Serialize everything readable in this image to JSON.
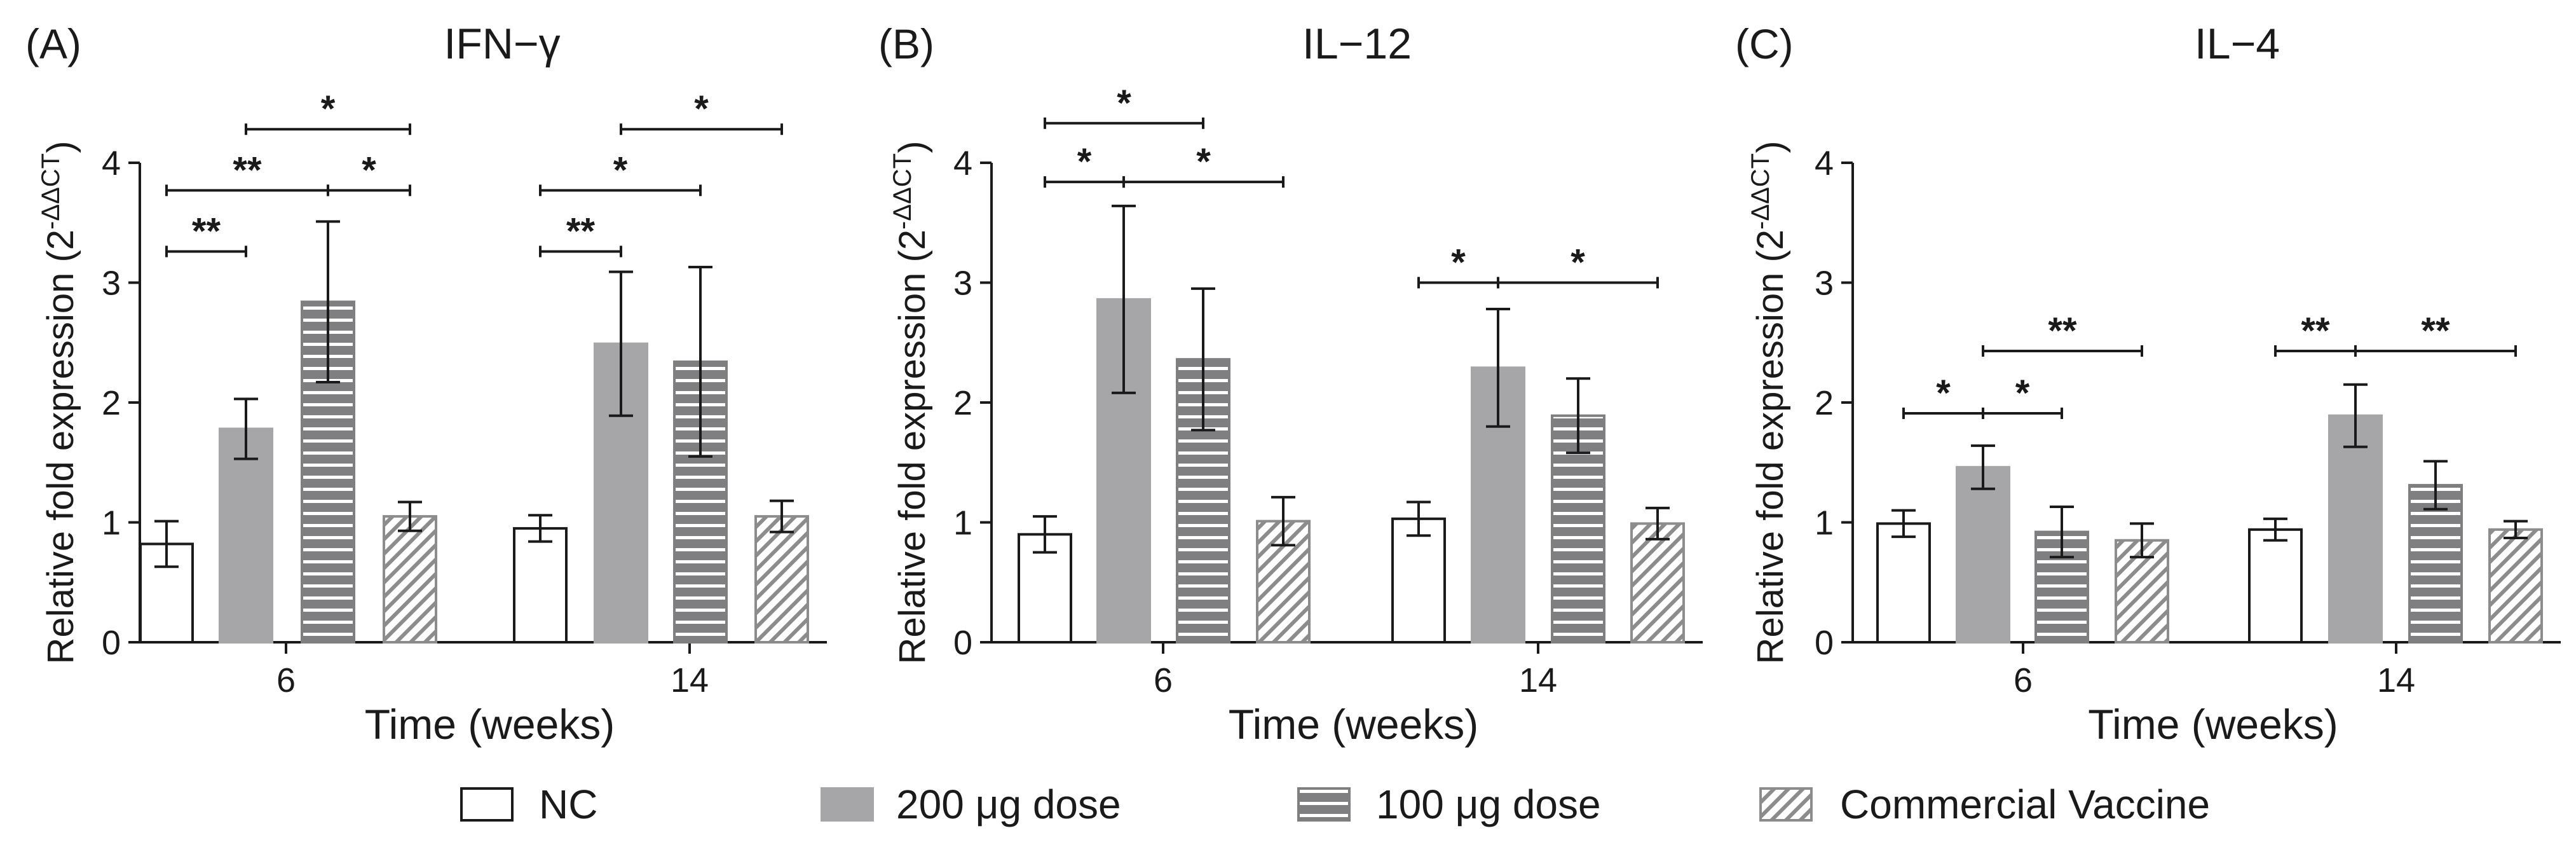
{
  "figure": {
    "legend": [
      {
        "key": "nc",
        "label": "NC"
      },
      {
        "key": "d200",
        "label": "200 μg dose"
      },
      {
        "key": "d100",
        "label": "100 μg dose"
      },
      {
        "key": "cv",
        "label": "Commercial Vaccine"
      }
    ],
    "colors": {
      "axis": "#1a1a1a",
      "nc_fill": "#ffffff",
      "d200_fill": "#a6a6a8",
      "d100_fill": "#7f7f81",
      "d100_stripe": "#ffffff",
      "cv_fill": "#ffffff",
      "cv_hatch": "#8c8c8c"
    }
  },
  "chart_data": [
    {
      "panel": "(A)",
      "type": "bar",
      "title": "IFN−γ",
      "xlabel": "Time (weeks)",
      "ylabel_main": "Relative fold expression (2",
      "ylabel_sup": "-ΔΔCT",
      "ylabel_close": ")",
      "ylim": [
        0,
        4
      ],
      "yticks": [
        0,
        1,
        2,
        3,
        4
      ],
      "categories": [
        "6",
        "14"
      ],
      "series": [
        {
          "name": "NC",
          "key": "nc",
          "values": [
            0.82,
            0.95
          ],
          "err": [
            0.19,
            0.11
          ]
        },
        {
          "name": "200 μg dose",
          "key": "d200",
          "values": [
            1.78,
            2.49
          ],
          "err": [
            0.25,
            0.6
          ]
        },
        {
          "name": "100 μg dose",
          "key": "d100",
          "values": [
            2.84,
            2.34
          ],
          "err": [
            0.67,
            0.79
          ]
        },
        {
          "name": "Commercial Vaccine",
          "key": "cv",
          "values": [
            1.05,
            1.05
          ],
          "err": [
            0.12,
            0.13
          ]
        }
      ],
      "significance": [
        {
          "group": 0,
          "from": 0,
          "to": 1,
          "y": 3.26,
          "label": "**"
        },
        {
          "group": 0,
          "from": 0,
          "to": 2,
          "y": 3.77,
          "label": "**"
        },
        {
          "group": 0,
          "from": 2,
          "to": 3,
          "y": 3.77,
          "label": "*"
        },
        {
          "group": 0,
          "from": 1,
          "to": 3,
          "y": 4.28,
          "label": "*"
        },
        {
          "group": 1,
          "from": 0,
          "to": 1,
          "y": 3.26,
          "label": "**"
        },
        {
          "group": 1,
          "from": 0,
          "to": 2,
          "y": 3.77,
          "label": "*"
        },
        {
          "group": 1,
          "from": 1,
          "to": 3,
          "y": 4.28,
          "label": "*"
        }
      ]
    },
    {
      "panel": "(B)",
      "type": "bar",
      "title": "IL−12",
      "xlabel": "Time (weeks)",
      "ylabel_main": "Relative fold expression (2",
      "ylabel_sup": "-ΔΔCT",
      "ylabel_close": ")",
      "ylim": [
        0,
        4
      ],
      "yticks": [
        0,
        1,
        2,
        3,
        4
      ],
      "categories": [
        "6",
        "14"
      ],
      "series": [
        {
          "name": "NC",
          "key": "nc",
          "values": [
            0.9,
            1.03
          ],
          "err": [
            0.15,
            0.14
          ]
        },
        {
          "name": "200 μg dose",
          "key": "d200",
          "values": [
            2.86,
            2.29
          ],
          "err": [
            0.78,
            0.49
          ]
        },
        {
          "name": "100 μg dose",
          "key": "d100",
          "values": [
            2.36,
            1.89
          ],
          "err": [
            0.59,
            0.31
          ]
        },
        {
          "name": "Commercial Vaccine",
          "key": "cv",
          "values": [
            1.01,
            0.99
          ],
          "err": [
            0.2,
            0.13
          ]
        }
      ],
      "significance": [
        {
          "group": 0,
          "from": 0,
          "to": 1,
          "y": 3.84,
          "label": "*"
        },
        {
          "group": 0,
          "from": 1,
          "to": 3,
          "y": 3.84,
          "label": "*"
        },
        {
          "group": 0,
          "from": 0,
          "to": 2,
          "y": 4.33,
          "label": "*"
        },
        {
          "group": 1,
          "from": 0,
          "to": 1,
          "y": 3.0,
          "label": "*"
        },
        {
          "group": 1,
          "from": 1,
          "to": 3,
          "y": 3.0,
          "label": "*"
        }
      ]
    },
    {
      "panel": "(C)",
      "type": "bar",
      "title": "IL−4",
      "xlabel": "Time (weeks)",
      "ylabel_main": "Relative fold expression (2",
      "ylabel_sup": "-ΔΔCT",
      "ylabel_close": ")",
      "ylim": [
        0,
        4
      ],
      "yticks": [
        0,
        1,
        2,
        3,
        4
      ],
      "categories": [
        "6",
        "14"
      ],
      "series": [
        {
          "name": "NC",
          "key": "nc",
          "values": [
            0.99,
            0.94
          ],
          "err": [
            0.11,
            0.09
          ]
        },
        {
          "name": "200 μg dose",
          "key": "d200",
          "values": [
            1.46,
            1.89
          ],
          "err": [
            0.18,
            0.26
          ]
        },
        {
          "name": "100 μg dose",
          "key": "d100",
          "values": [
            0.92,
            1.31
          ],
          "err": [
            0.21,
            0.2
          ]
        },
        {
          "name": "Commercial Vaccine",
          "key": "cv",
          "values": [
            0.85,
            0.94
          ],
          "err": [
            0.14,
            0.07
          ]
        }
      ],
      "significance": [
        {
          "group": 0,
          "from": 0,
          "to": 1,
          "y": 1.91,
          "label": "*"
        },
        {
          "group": 0,
          "from": 1,
          "to": 2,
          "y": 1.91,
          "label": "*"
        },
        {
          "group": 0,
          "from": 1,
          "to": 3,
          "y": 2.43,
          "label": "**"
        },
        {
          "group": 1,
          "from": 0,
          "to": 1,
          "y": 2.43,
          "label": "**"
        },
        {
          "group": 1,
          "from": 1,
          "to": 3,
          "y": 2.43,
          "label": "**"
        }
      ]
    }
  ]
}
